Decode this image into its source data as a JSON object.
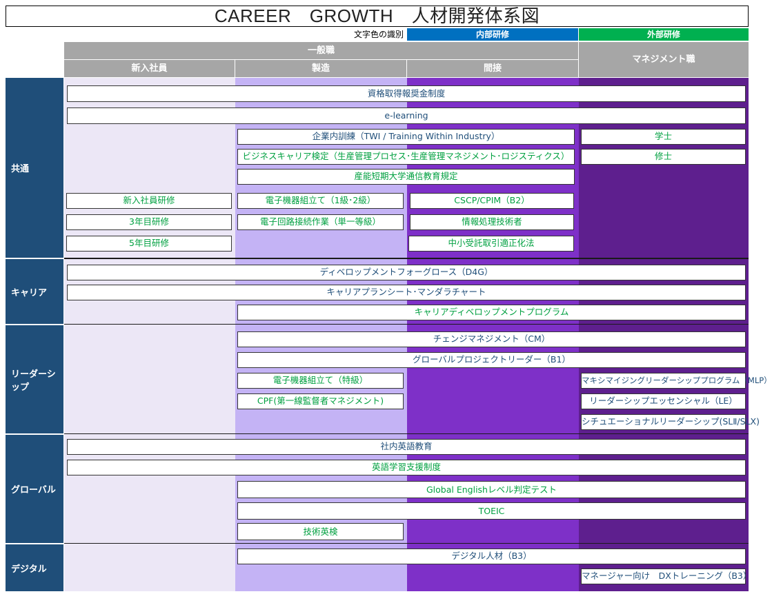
{
  "title": "CAREER　GROWTH　人材開発体系図",
  "legend": {
    "label": "文字色の識別",
    "internal": "内部研修",
    "external": "外部研修"
  },
  "headers": {
    "general": "一般職",
    "new_employee": "新入社員",
    "manufacturing": "製造",
    "indirect": "間接",
    "management": "マネジメント職"
  },
  "categories": {
    "common": "共通",
    "career": "キャリア",
    "leadership": "リーダーシップ",
    "global": "グローバル",
    "digital": "デジタル"
  },
  "colors": {
    "col_new": "#ECE7F6",
    "col_mfg": "#C4B3F5",
    "col_indirect": "#7E30C8",
    "col_mgmt": "#5E1F8E",
    "category": "#1F4E79",
    "header": "#A6A6A6",
    "internal_text": "#1F4E79",
    "external_text": "#00A040"
  },
  "programs": {
    "p01": "資格取得報奨金制度",
    "p02": "e-learning",
    "p03": "企業内訓練（TWI / Training Within Industry）",
    "p04": "ビジネスキャリア検定（生産管理プロセス･生産管理マネジメント･ロジスティクス）",
    "p05": "産能短期大学通信教育規定",
    "p06": "学士",
    "p07": "修士",
    "p08": "新入社員研修",
    "p09": "3年目研修",
    "p10": "5年目研修",
    "p11": "電子機器組立て（1級･2級）",
    "p12": "電子回路接続作業（単一等級）",
    "p13": "CSCP/CPIM（B2）",
    "p14": "情報処理技術者",
    "p15": "中小受託取引適正化法",
    "p16": "ディベロップメントフォーグロース（D4G）",
    "p17": "キャリアプランシート･マンダラチャート",
    "p18": "キャリアディベロップメントプログラム",
    "p19": "チェンジマネジメント（CM）",
    "p20": "グローバルプロジェクトリーダー（B1）",
    "p21": "電子機器組立て（特級）",
    "p22": "CPF(第一線監督者マネジメント)",
    "p23": "マキシマイジングリーダーシッププログラム（MLP）",
    "p24": "リーダーシップエッセンシャル（LE）",
    "p25": "シチュエーショナルリーダーシップ(SLⅡ/SLX)",
    "p26": "社内英語教育",
    "p27": "英語学習支援制度",
    "p28": "Global Englishレベル判定テスト",
    "p29": "TOEIC",
    "p30": "技術英検",
    "p31": "デジタル人材（B3）",
    "p32": "マネージャー向け　DXトレーニング（B3）"
  }
}
